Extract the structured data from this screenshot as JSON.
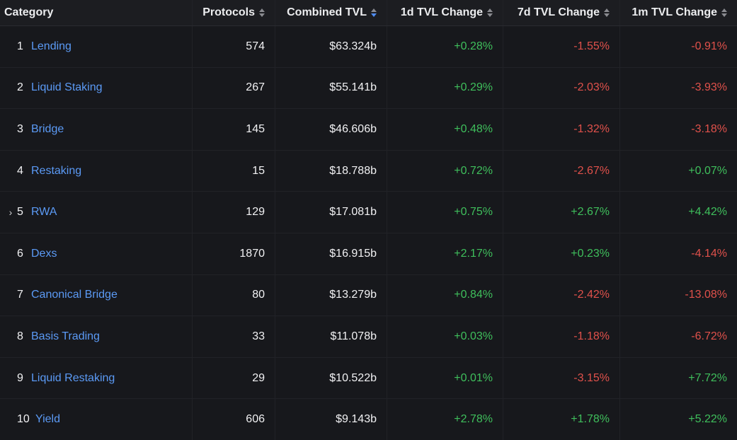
{
  "columns": {
    "category": "Category",
    "protocols": "Protocols",
    "tvl": "Combined TVL",
    "change_1d": "1d TVL Change",
    "change_7d": "7d TVL Change",
    "change_1m": "1m TVL Change"
  },
  "sorted_column": "Combined TVL",
  "icons": {
    "sort": "sort-icon",
    "expand": "chevron-right-icon"
  },
  "colors": {
    "link": "#5b9af5",
    "positive": "#3fbf5c",
    "negative": "#e0514b"
  },
  "rows": [
    {
      "rank": "1",
      "name": "Lending",
      "protocols": "574",
      "tvl": "$63.324b",
      "d1": "+0.28%",
      "d7": "-1.55%",
      "m1": "-0.91%"
    },
    {
      "rank": "2",
      "name": "Liquid Staking",
      "protocols": "267",
      "tvl": "$55.141b",
      "d1": "+0.29%",
      "d7": "-2.03%",
      "m1": "-3.93%"
    },
    {
      "rank": "3",
      "name": "Bridge",
      "protocols": "145",
      "tvl": "$46.606b",
      "d1": "+0.48%",
      "d7": "-1.32%",
      "m1": "-3.18%"
    },
    {
      "rank": "4",
      "name": "Restaking",
      "protocols": "15",
      "tvl": "$18.788b",
      "d1": "+0.72%",
      "d7": "-2.67%",
      "m1": "+0.07%"
    },
    {
      "rank": "5",
      "name": "RWA",
      "protocols": "129",
      "tvl": "$17.081b",
      "d1": "+0.75%",
      "d7": "+2.67%",
      "m1": "+4.42%",
      "expandable": true
    },
    {
      "rank": "6",
      "name": "Dexs",
      "protocols": "1870",
      "tvl": "$16.915b",
      "d1": "+2.17%",
      "d7": "+0.23%",
      "m1": "-4.14%"
    },
    {
      "rank": "7",
      "name": "Canonical Bridge",
      "protocols": "80",
      "tvl": "$13.279b",
      "d1": "+0.84%",
      "d7": "-2.42%",
      "m1": "-13.08%"
    },
    {
      "rank": "8",
      "name": "Basis Trading",
      "protocols": "33",
      "tvl": "$11.078b",
      "d1": "+0.03%",
      "d7": "-1.18%",
      "m1": "-6.72%"
    },
    {
      "rank": "9",
      "name": "Liquid Restaking",
      "protocols": "29",
      "tvl": "$10.522b",
      "d1": "+0.01%",
      "d7": "-3.15%",
      "m1": "+7.72%"
    },
    {
      "rank": "10",
      "name": "Yield",
      "protocols": "606",
      "tvl": "$9.143b",
      "d1": "+2.78%",
      "d7": "+1.78%",
      "m1": "+5.22%"
    }
  ]
}
